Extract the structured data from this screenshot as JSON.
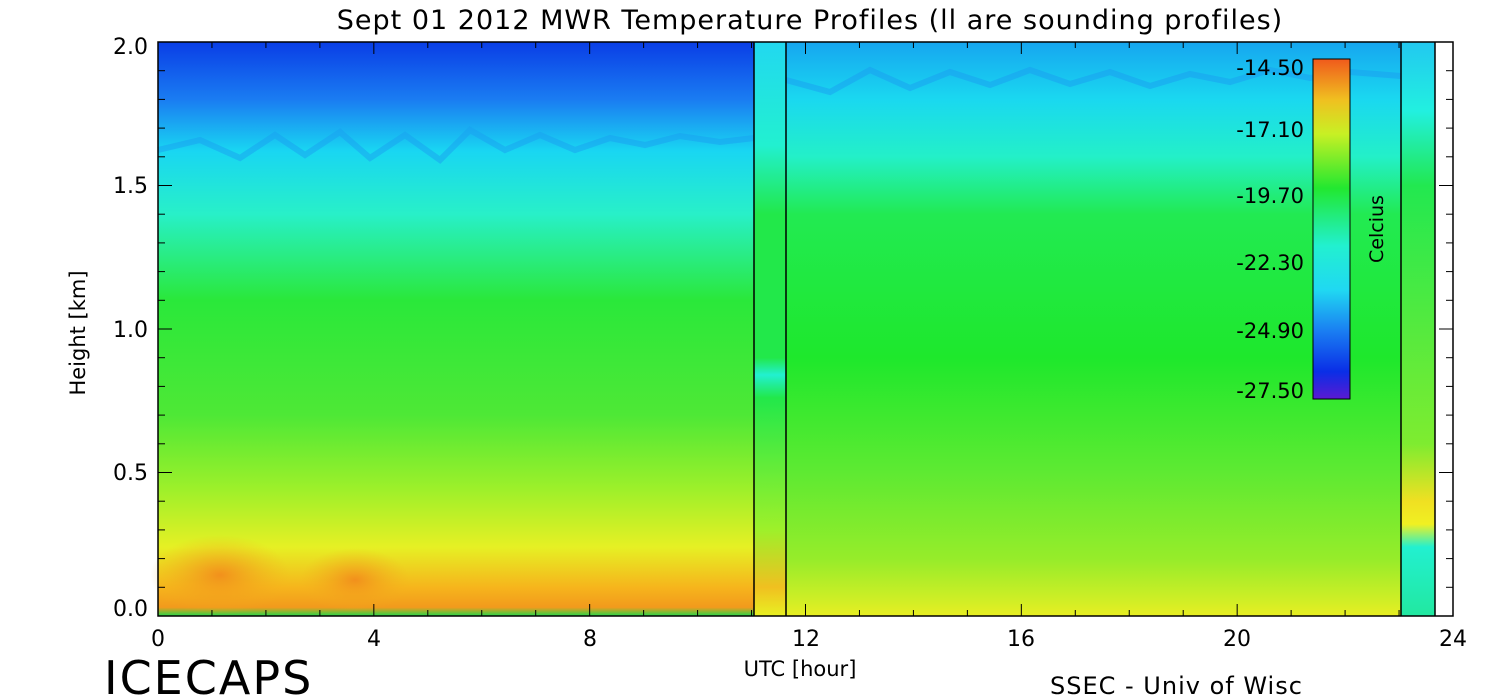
{
  "chart_data": {
    "type": "heatmap",
    "title": "Sept 01 2012 MWR Temperature Profiles (ll are sounding profiles)",
    "xlabel": "UTC [hour]",
    "ylabel": "Height [km]",
    "xlim": [
      0,
      24
    ],
    "ylim": [
      0,
      2.0
    ],
    "x_ticks": [
      "0",
      "4",
      "8",
      "12",
      "16",
      "20",
      "24"
    ],
    "y_ticks": [
      "0.0",
      "0.5",
      "1.0",
      "1.5",
      "2.0"
    ],
    "colorbar": {
      "label": "Celcius",
      "ticks": [
        "-14.50",
        "-17.10",
        "-19.70",
        "-22.30",
        "-24.90",
        "-27.50"
      ],
      "range": [
        -27.5,
        -14.5
      ]
    },
    "sounding_profiles_utc": [
      11.0,
      11.6,
      23.0,
      23.6
    ],
    "temperature_profile_samples": {
      "heights_km": [
        0.0,
        0.05,
        0.2,
        0.5,
        1.0,
        1.5,
        2.0
      ],
      "early_0_to_11h_celsius": [
        -19.5,
        -15.5,
        -16.5,
        -18.5,
        -20.5,
        -22.5,
        -26.0
      ],
      "late_11_to_23h_celsius": [
        -19.0,
        -18.0,
        -18.5,
        -19.5,
        -20.5,
        -21.0,
        -22.5
      ]
    }
  },
  "footer": {
    "left": "ICECAPS",
    "right": "SSEC - Univ of Wisc"
  }
}
